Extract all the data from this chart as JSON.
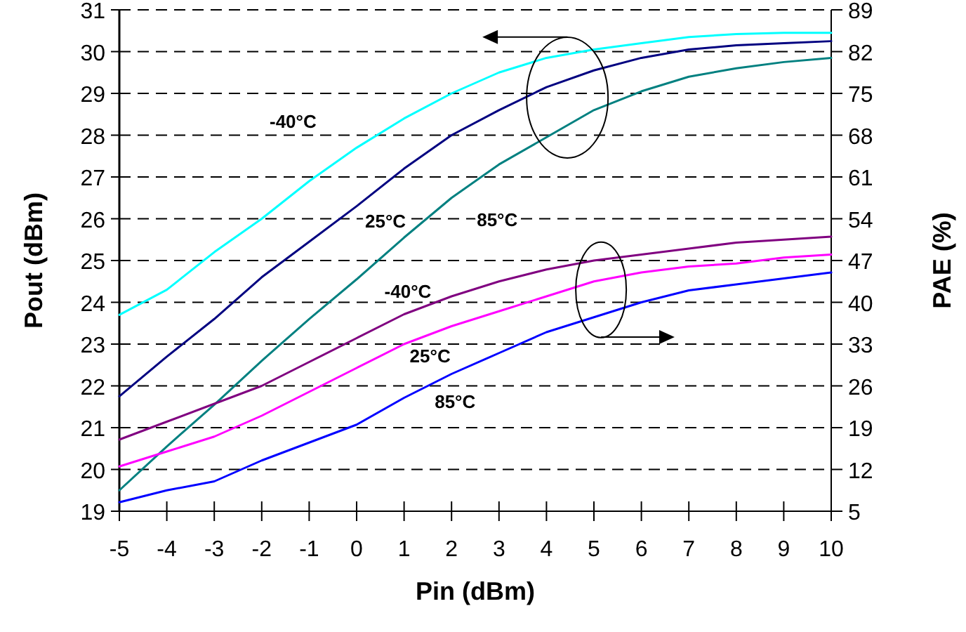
{
  "chart_data": {
    "type": "line",
    "xlabel": "Pin (dBm)",
    "ylabel": "Pout (dBm)",
    "y2label": "PAE (%)",
    "x": [
      -5,
      -4,
      -3,
      -2,
      -1,
      0,
      1,
      2,
      3,
      4,
      5,
      6,
      7,
      8,
      9,
      10
    ],
    "xlim": [
      -5,
      10
    ],
    "xticks": [
      -5,
      -4,
      -3,
      -2,
      -1,
      0,
      1,
      2,
      3,
      4,
      5,
      6,
      7,
      8,
      9,
      10
    ],
    "ylim": [
      19,
      31
    ],
    "yticks": [
      19,
      20,
      21,
      22,
      23,
      24,
      25,
      26,
      27,
      28,
      29,
      30,
      31
    ],
    "y2lim": [
      5,
      89
    ],
    "y2ticks": [
      5,
      12,
      19,
      26,
      33,
      40,
      47,
      54,
      61,
      68,
      75,
      82,
      89
    ],
    "grid": "y",
    "line_style": "solid",
    "marker": "none",
    "series": [
      {
        "name": "-40°C",
        "color": "#00ffff",
        "values": [
          23.7,
          24.3,
          25.2,
          26.0,
          26.9,
          27.7,
          28.4,
          29.0,
          29.5,
          29.85,
          30.05,
          30.2,
          30.35,
          30.42,
          30.45,
          30.45
        ]
      },
      {
        "name": "25°C",
        "color": "#000080",
        "values": [
          21.75,
          22.7,
          23.6,
          24.6,
          25.45,
          26.3,
          27.2,
          28.0,
          28.6,
          29.15,
          29.55,
          29.85,
          30.05,
          30.15,
          30.2,
          30.25
        ]
      },
      {
        "name": "85°C",
        "color": "#008080",
        "values": [
          19.5,
          20.55,
          21.55,
          22.6,
          23.6,
          24.55,
          25.55,
          26.5,
          27.3,
          27.95,
          28.6,
          29.05,
          29.4,
          29.6,
          29.75,
          29.85
        ]
      },
      {
        "name": "-40°C",
        "color": "#800080",
        "axis": "y2",
        "values": [
          17,
          20,
          23,
          26,
          30,
          34,
          38,
          41,
          43.5,
          45.5,
          47,
          48,
          49,
          50,
          50.5,
          51
        ]
      },
      {
        "name": "25°C",
        "color": "#ff00ff",
        "axis": "y2",
        "values": [
          12.5,
          15,
          17.5,
          21,
          25,
          29,
          33,
          36,
          38.5,
          41,
          43.5,
          45,
          46,
          46.5,
          47.5,
          48
        ]
      },
      {
        "name": "85°C",
        "color": "#0000ff",
        "axis": "y2",
        "values": [
          6.5,
          8.5,
          10,
          13.5,
          16.5,
          19.5,
          24,
          28,
          31.5,
          35,
          37.5,
          40,
          42,
          43,
          44,
          45
        ]
      }
    ]
  }
}
